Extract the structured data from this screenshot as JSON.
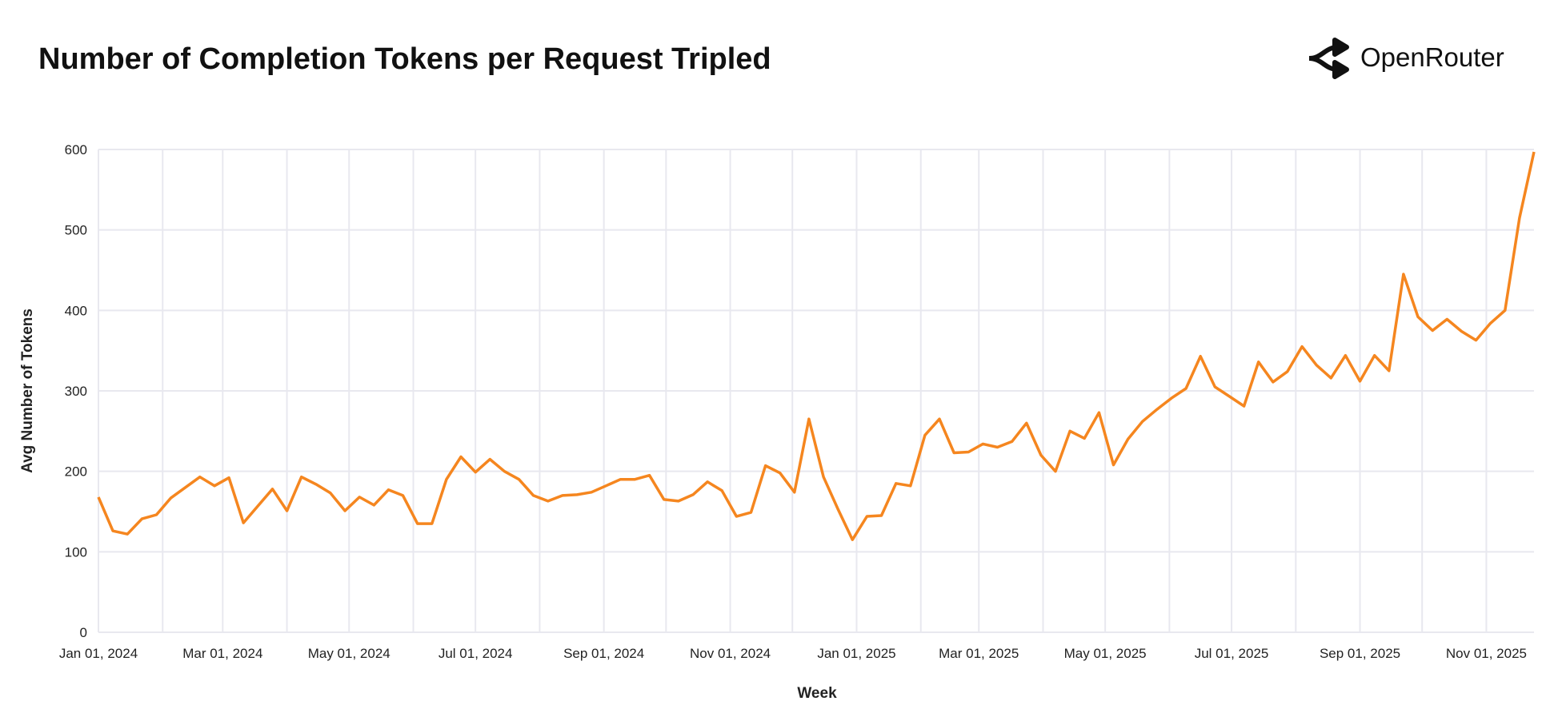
{
  "header": {
    "title": "Number of Completion Tokens per Request Tripled",
    "brand": "OpenRouter",
    "brand_icon": "openrouter-logo-icon"
  },
  "colors": {
    "line": "#f5861f",
    "grid": "#e8e8ef",
    "text": "#111111"
  },
  "chart_data": {
    "type": "line",
    "title": "Number of Completion Tokens per Request Tripled",
    "xlabel": "Week",
    "ylabel": "Avg Number of Tokens",
    "ylim": [
      0,
      600
    ],
    "yticks": [
      0,
      100,
      200,
      300,
      400,
      500,
      600
    ],
    "xlim": [
      "2024-01-01",
      "2025-11-24"
    ],
    "xticks": [
      {
        "date": "2024-01-01",
        "label": "Jan 01, 2024"
      },
      {
        "date": "2024-03-01",
        "label": "Mar 01, 2024"
      },
      {
        "date": "2024-05-01",
        "label": "May 01, 2024"
      },
      {
        "date": "2024-07-01",
        "label": "Jul 01, 2024"
      },
      {
        "date": "2024-09-01",
        "label": "Sep 01, 2024"
      },
      {
        "date": "2024-11-01",
        "label": "Nov 01, 2024"
      },
      {
        "date": "2025-01-01",
        "label": "Jan 01, 2025"
      },
      {
        "date": "2025-03-01",
        "label": "Mar 01, 2025"
      },
      {
        "date": "2025-05-01",
        "label": "May 01, 2025"
      },
      {
        "date": "2025-07-01",
        "label": "Jul 01, 2025"
      },
      {
        "date": "2025-09-01",
        "label": "Sep 01, 2025"
      },
      {
        "date": "2025-11-01",
        "label": "Nov 01, 2025"
      }
    ],
    "monthly_gridlines": [
      "2024-01-01",
      "2024-02-01",
      "2024-03-01",
      "2024-04-01",
      "2024-05-01",
      "2024-06-01",
      "2024-07-01",
      "2024-08-01",
      "2024-09-01",
      "2024-10-01",
      "2024-11-01",
      "2024-12-01",
      "2025-01-01",
      "2025-02-01",
      "2025-03-01",
      "2025-04-01",
      "2025-05-01",
      "2025-06-01",
      "2025-07-01",
      "2025-08-01",
      "2025-09-01",
      "2025-10-01",
      "2025-11-01"
    ],
    "grid": true,
    "x": [
      "2024-01-01",
      "2024-01-08",
      "2024-01-15",
      "2024-01-22",
      "2024-01-29",
      "2024-02-05",
      "2024-02-12",
      "2024-02-19",
      "2024-02-26",
      "2024-03-04",
      "2024-03-11",
      "2024-03-18",
      "2024-03-25",
      "2024-04-01",
      "2024-04-08",
      "2024-04-15",
      "2024-04-22",
      "2024-04-29",
      "2024-05-06",
      "2024-05-13",
      "2024-05-20",
      "2024-05-27",
      "2024-06-03",
      "2024-06-10",
      "2024-06-17",
      "2024-06-24",
      "2024-07-01",
      "2024-07-08",
      "2024-07-15",
      "2024-07-22",
      "2024-07-29",
      "2024-08-05",
      "2024-08-12",
      "2024-08-19",
      "2024-08-26",
      "2024-09-02",
      "2024-09-09",
      "2024-09-16",
      "2024-09-23",
      "2024-09-30",
      "2024-10-07",
      "2024-10-14",
      "2024-10-21",
      "2024-10-28",
      "2024-11-04",
      "2024-11-11",
      "2024-11-18",
      "2024-11-25",
      "2024-12-02",
      "2024-12-09",
      "2024-12-16",
      "2024-12-23",
      "2024-12-30",
      "2025-01-06",
      "2025-01-13",
      "2025-01-20",
      "2025-01-27",
      "2025-02-03",
      "2025-02-10",
      "2025-02-17",
      "2025-02-24",
      "2025-03-03",
      "2025-03-10",
      "2025-03-17",
      "2025-03-24",
      "2025-03-31",
      "2025-04-07",
      "2025-04-14",
      "2025-04-21",
      "2025-04-28",
      "2025-05-05",
      "2025-05-12",
      "2025-05-19",
      "2025-05-26",
      "2025-06-02",
      "2025-06-09",
      "2025-06-16",
      "2025-06-23",
      "2025-06-30",
      "2025-07-07",
      "2025-07-14",
      "2025-07-21",
      "2025-07-28",
      "2025-08-04",
      "2025-08-11",
      "2025-08-18",
      "2025-08-25",
      "2025-09-01",
      "2025-09-08",
      "2025-09-15",
      "2025-09-22",
      "2025-09-29",
      "2025-10-06",
      "2025-10-13",
      "2025-10-20",
      "2025-10-27",
      "2025-11-03",
      "2025-11-10",
      "2025-11-17",
      "2025-11-24"
    ],
    "series": [
      {
        "values": [
          168,
          126,
          122,
          141,
          146,
          167,
          180,
          193,
          182,
          192,
          136,
          157,
          178,
          151,
          193,
          184,
          173,
          151,
          168,
          158,
          177,
          170,
          135,
          135,
          190,
          218,
          199,
          215,
          200,
          190,
          170,
          163,
          170,
          171,
          174,
          182,
          190,
          190,
          195,
          165,
          163,
          171,
          187,
          176,
          144,
          149,
          207,
          198,
          174,
          265,
          193,
          153,
          115,
          144,
          145,
          185,
          182,
          245,
          265,
          223,
          224,
          234,
          230,
          237,
          260,
          220,
          200,
          250,
          241,
          273,
          208,
          240,
          262,
          277,
          291,
          303,
          343,
          305,
          293,
          281,
          336,
          311,
          324,
          355,
          332,
          316,
          344,
          312,
          344,
          325,
          445,
          392,
          375,
          389,
          374,
          363,
          384,
          400,
          515,
          597
        ]
      }
    ]
  }
}
